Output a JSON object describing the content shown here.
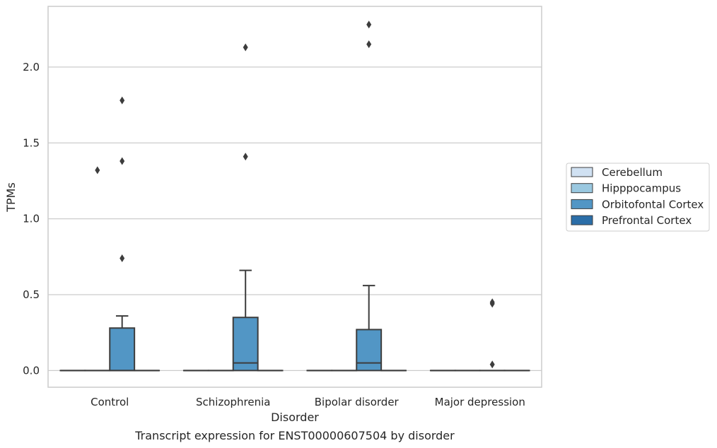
{
  "caption": "Transcript expression for ENST00000607504 by disorder",
  "chart_data": {
    "type": "box",
    "xlabel": "Disorder",
    "ylabel": "TPMs",
    "ylim": [
      -0.11,
      2.4
    ],
    "yticks": [
      "0.0",
      "0.5",
      "1.0",
      "1.5",
      "2.0"
    ],
    "grid": "horizontal",
    "legend_position": "right",
    "categories": [
      "Control",
      "Schizophrenia",
      "Bipolar disorder",
      "Major depression"
    ],
    "series": [
      {
        "name": "Cerebellum",
        "color": "#d0e1f2",
        "boxes": [
          {
            "category": "Control",
            "q1": 0,
            "median": 0,
            "q3": 0,
            "whisker_low": 0,
            "whisker_high": 0,
            "outliers": []
          },
          {
            "category": "Schizophrenia",
            "q1": 0,
            "median": 0,
            "q3": 0,
            "whisker_low": 0,
            "whisker_high": 0,
            "outliers": []
          },
          {
            "category": "Bipolar disorder",
            "q1": 0,
            "median": 0,
            "q3": 0,
            "whisker_low": 0,
            "whisker_high": 0,
            "outliers": []
          },
          {
            "category": "Major depression",
            "q1": 0,
            "median": 0,
            "q3": 0,
            "whisker_low": 0,
            "whisker_high": 0,
            "outliers": []
          }
        ]
      },
      {
        "name": "Hipppocampus",
        "color": "#9ac8e0",
        "boxes": [
          {
            "category": "Control",
            "q1": 0,
            "median": 0,
            "q3": 0,
            "whisker_low": 0,
            "whisker_high": 0,
            "outliers": [
              1.32
            ]
          },
          {
            "category": "Schizophrenia",
            "q1": 0,
            "median": 0,
            "q3": 0,
            "whisker_low": 0,
            "whisker_high": 0,
            "outliers": []
          },
          {
            "category": "Bipolar disorder",
            "q1": 0,
            "median": 0,
            "q3": 0,
            "whisker_low": 0,
            "whisker_high": 0,
            "outliers": []
          },
          {
            "category": "Major depression",
            "q1": 0,
            "median": 0,
            "q3": 0,
            "whisker_low": 0,
            "whisker_high": 0,
            "outliers": []
          }
        ]
      },
      {
        "name": "Orbitofontal Cortex",
        "color": "#5296c5",
        "boxes": [
          {
            "category": "Control",
            "q1": 0,
            "median": 0,
            "q3": 0.28,
            "whisker_low": 0,
            "whisker_high": 0.36,
            "outliers": [
              0.74,
              1.38,
              1.78
            ]
          },
          {
            "category": "Schizophrenia",
            "q1": 0,
            "median": 0.05,
            "q3": 0.35,
            "whisker_low": 0,
            "whisker_high": 0.66,
            "outliers": [
              1.41,
              2.13
            ]
          },
          {
            "category": "Bipolar disorder",
            "q1": 0,
            "median": 0.05,
            "q3": 0.27,
            "whisker_low": 0,
            "whisker_high": 0.56,
            "outliers": [
              2.15,
              2.28
            ]
          },
          {
            "category": "Major depression",
            "q1": 0,
            "median": 0,
            "q3": 0,
            "whisker_low": 0,
            "whisker_high": 0,
            "outliers": [
              0.04,
              0.44,
              0.45
            ]
          }
        ]
      },
      {
        "name": "Prefrontal Cortex",
        "color": "#2b6ea8",
        "boxes": [
          {
            "category": "Control",
            "q1": 0,
            "median": 0,
            "q3": 0,
            "whisker_low": 0,
            "whisker_high": 0,
            "outliers": []
          },
          {
            "category": "Schizophrenia",
            "q1": 0,
            "median": 0,
            "q3": 0,
            "whisker_low": 0,
            "whisker_high": 0,
            "outliers": []
          },
          {
            "category": "Bipolar disorder",
            "q1": 0,
            "median": 0,
            "q3": 0,
            "whisker_low": 0,
            "whisker_high": 0,
            "outliers": []
          },
          {
            "category": "Major depression",
            "q1": 0,
            "median": 0,
            "q3": 0,
            "whisker_low": 0,
            "whisker_high": 0,
            "outliers": []
          }
        ]
      }
    ]
  }
}
